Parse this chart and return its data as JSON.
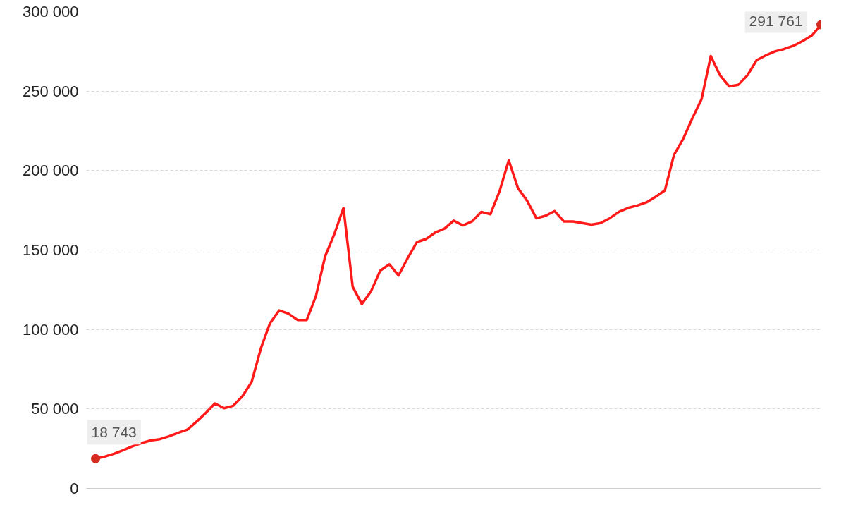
{
  "chart_data": {
    "type": "line",
    "categories": [
      null,
      null,
      null,
      null,
      null,
      null,
      null,
      null,
      null,
      null,
      null,
      null,
      null,
      null,
      null,
      null,
      null,
      null,
      null,
      null,
      null,
      null,
      null,
      null,
      null,
      null,
      null,
      null,
      null,
      null,
      null,
      null,
      null,
      null,
      null,
      null,
      null,
      null,
      null,
      null,
      null,
      null,
      null,
      null,
      null,
      null,
      null,
      null,
      null,
      null,
      null,
      null,
      null,
      null,
      null,
      null,
      null,
      null,
      null,
      null,
      null,
      null,
      null,
      null,
      null,
      null,
      null,
      null,
      null,
      null,
      null,
      null,
      null,
      null,
      null,
      null,
      null,
      null,
      null,
      null
    ],
    "series": [
      {
        "color": "#ff1a1a",
        "values": [
          18743,
          20000,
          21800,
          24000,
          26500,
          28500,
          30200,
          31000,
          32800,
          35000,
          37000,
          42000,
          47500,
          53500,
          50500,
          52000,
          58000,
          67000,
          88000,
          104000,
          112000,
          110000,
          106000,
          106000,
          121000,
          146000,
          160000,
          176500,
          127000,
          116000,
          124000,
          137000,
          141000,
          134000,
          145000,
          155000,
          157000,
          161000,
          163500,
          168500,
          165500,
          168000,
          174000,
          172500,
          187000,
          206500,
          189000,
          181000,
          170000,
          171500,
          174500,
          168000,
          168000,
          167000,
          166000,
          167000,
          170000,
          174000,
          176500,
          178000,
          180000,
          183500,
          187500,
          210000,
          220000,
          233000,
          245000,
          272000,
          260000,
          253000,
          254000,
          260000,
          269500,
          272500,
          275000,
          276500,
          278500,
          281500,
          285000,
          291761
        ],
        "value_labels": [
          "18 743",
          null,
          null,
          null,
          null,
          null,
          null,
          null,
          null,
          null,
          null,
          null,
          null,
          null,
          null,
          null,
          null,
          null,
          null,
          null,
          null,
          null,
          null,
          null,
          null,
          null,
          null,
          null,
          null,
          null,
          null,
          null,
          null,
          null,
          null,
          null,
          null,
          null,
          null,
          null,
          null,
          null,
          null,
          null,
          null,
          null,
          null,
          null,
          null,
          null,
          null,
          null,
          null,
          null,
          null,
          null,
          null,
          null,
          null,
          null,
          null,
          null,
          null,
          null,
          null,
          null,
          null,
          null,
          null,
          null,
          null,
          null,
          null,
          null,
          null,
          null,
          null,
          null,
          null,
          "291 761"
        ]
      }
    ],
    "ylim": [
      0,
      300000
    ],
    "yticks": [
      {
        "value": 0,
        "label": "0"
      },
      {
        "value": 50000,
        "label": "50 000"
      },
      {
        "value": 100000,
        "label": "100 000"
      },
      {
        "value": 150000,
        "label": "150 000"
      },
      {
        "value": 200000,
        "label": "200 000"
      },
      {
        "value": 250000,
        "label": "250 000"
      },
      {
        "value": 300000,
        "label": "300 000"
      }
    ],
    "grid": "y",
    "tick_labels": "y",
    "line_style": "solid"
  }
}
